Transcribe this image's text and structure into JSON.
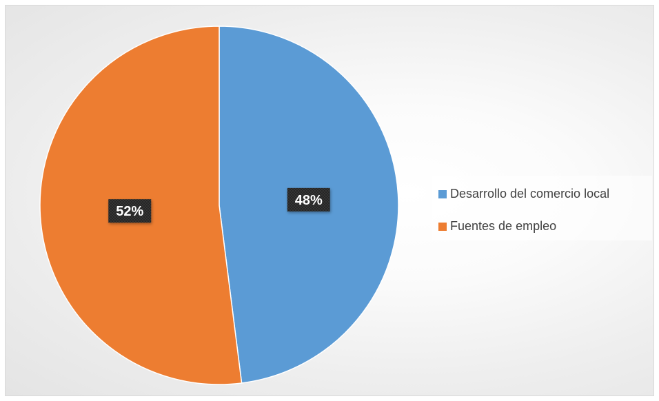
{
  "chart_data": {
    "type": "pie",
    "categories": [
      "Desarrollo del comercio local",
      "Fuentes de empleo"
    ],
    "values": [
      48,
      52
    ],
    "data_labels": [
      "48%",
      "52%"
    ],
    "colors": [
      "#5B9BD5",
      "#ED7D31"
    ],
    "title": "",
    "legend_position": "right",
    "start_angle": "12 o'clock, clockwise"
  }
}
